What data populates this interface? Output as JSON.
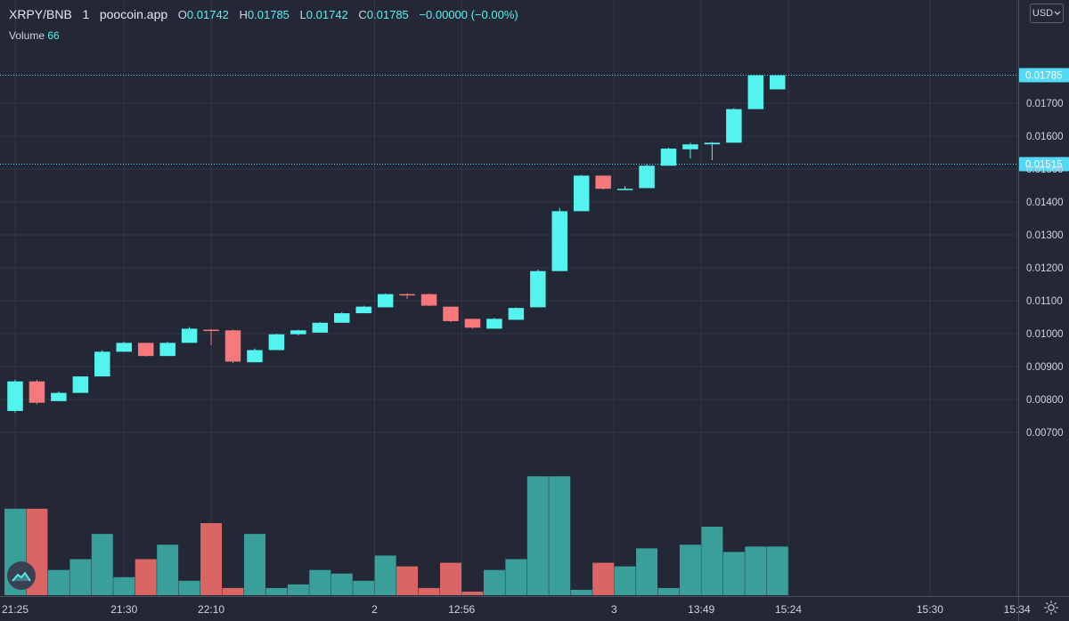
{
  "legend": {
    "symbol": "XRPY/BNB",
    "interval": "1",
    "source": "poocoin.app",
    "open_label": "O",
    "open": "0.01742",
    "high_label": "H",
    "high": "0.01785",
    "low_label": "L",
    "low": "0.01742",
    "close_label": "C",
    "close": "0.01785",
    "change": "−0.00000 (−0.00%)",
    "volume_label": "Volume",
    "volume_value": "66"
  },
  "currency": {
    "label": "USD",
    "icon": "chevron-down-icon"
  },
  "icons": {
    "logo": "poocoin-logo-icon",
    "settings": "gear-icon"
  },
  "colors": {
    "up": "#53f3ef",
    "down": "#f7777a",
    "vol_up": "#3a9e9a",
    "vol_down": "#d96565",
    "price_line": "#53d9f3"
  },
  "chart_data": {
    "type": "candlestick",
    "title": "XRPY/BNB · 1 · poocoin.app",
    "y_ticks": [
      "0.00700",
      "0.00800",
      "0.00900",
      "0.01000",
      "0.01100",
      "0.01200",
      "0.01300",
      "0.01400",
      "0.01500",
      "0.01600",
      "0.01700"
    ],
    "ylim": [
      0.0068,
      0.01805
    ],
    "x_ticks": [
      {
        "label": "21:25",
        "index": 0
      },
      {
        "label": "21:30",
        "index": 5
      },
      {
        "label": "22:10",
        "index": 9
      },
      {
        "label": "2",
        "index": 16.5
      },
      {
        "label": "12:56",
        "index": 20.5
      },
      {
        "label": "3",
        "index": 27.5
      },
      {
        "label": "13:49",
        "index": 31.5
      },
      {
        "label": "15:24",
        "index": 35.5
      },
      {
        "label": "15:30",
        "index": 42
      },
      {
        "label": "15:34",
        "index": 46
      }
    ],
    "price_lines": [
      {
        "label": "0.01785",
        "value": 0.01785
      },
      {
        "label": "0.01515",
        "value": 0.01515
      }
    ],
    "candles": [
      {
        "o": 0.00765,
        "h": 0.0086,
        "l": 0.0076,
        "c": 0.00855
      },
      {
        "o": 0.00855,
        "h": 0.0086,
        "l": 0.00785,
        "c": 0.0079
      },
      {
        "o": 0.00795,
        "h": 0.00825,
        "l": 0.00795,
        "c": 0.0082
      },
      {
        "o": 0.0082,
        "h": 0.0087,
        "l": 0.0082,
        "c": 0.0087
      },
      {
        "o": 0.0087,
        "h": 0.0095,
        "l": 0.0087,
        "c": 0.00945
      },
      {
        "o": 0.00945,
        "h": 0.00975,
        "l": 0.00945,
        "c": 0.00972
      },
      {
        "o": 0.00972,
        "h": 0.00972,
        "l": 0.0093,
        "c": 0.00932
      },
      {
        "o": 0.00932,
        "h": 0.00975,
        "l": 0.00932,
        "c": 0.00972
      },
      {
        "o": 0.00972,
        "h": 0.0102,
        "l": 0.00972,
        "c": 0.01015
      },
      {
        "o": 0.01012,
        "h": 0.01015,
        "l": 0.00965,
        "c": 0.0101
      },
      {
        "o": 0.0101,
        "h": 0.01012,
        "l": 0.0091,
        "c": 0.00915
      },
      {
        "o": 0.00913,
        "h": 0.00955,
        "l": 0.00913,
        "c": 0.0095
      },
      {
        "o": 0.0095,
        "h": 0.01,
        "l": 0.0095,
        "c": 0.00998
      },
      {
        "o": 0.00998,
        "h": 0.01012,
        "l": 0.00995,
        "c": 0.0101
      },
      {
        "o": 0.01003,
        "h": 0.01035,
        "l": 0.01003,
        "c": 0.01033
      },
      {
        "o": 0.01033,
        "h": 0.01065,
        "l": 0.01033,
        "c": 0.01062
      },
      {
        "o": 0.01062,
        "h": 0.01085,
        "l": 0.01062,
        "c": 0.01082
      },
      {
        "o": 0.0108,
        "h": 0.01122,
        "l": 0.0108,
        "c": 0.0112
      },
      {
        "o": 0.0112,
        "h": 0.01122,
        "l": 0.01105,
        "c": 0.01118
      },
      {
        "o": 0.0112,
        "h": 0.01122,
        "l": 0.01083,
        "c": 0.01085
      },
      {
        "o": 0.01082,
        "h": 0.01082,
        "l": 0.01035,
        "c": 0.01038
      },
      {
        "o": 0.01045,
        "h": 0.01045,
        "l": 0.01015,
        "c": 0.01018
      },
      {
        "o": 0.01015,
        "h": 0.01048,
        "l": 0.01015,
        "c": 0.01045
      },
      {
        "o": 0.01042,
        "h": 0.0108,
        "l": 0.01042,
        "c": 0.01078
      },
      {
        "o": 0.0108,
        "h": 0.01195,
        "l": 0.0108,
        "c": 0.0119
      },
      {
        "o": 0.0119,
        "h": 0.01382,
        "l": 0.0119,
        "c": 0.01372
      },
      {
        "o": 0.01372,
        "h": 0.01482,
        "l": 0.01372,
        "c": 0.0148
      },
      {
        "o": 0.0148,
        "h": 0.0148,
        "l": 0.01438,
        "c": 0.0144
      },
      {
        "o": 0.01437,
        "h": 0.01448,
        "l": 0.01437,
        "c": 0.0144
      },
      {
        "o": 0.01442,
        "h": 0.01515,
        "l": 0.01442,
        "c": 0.0151
      },
      {
        "o": 0.0151,
        "h": 0.01565,
        "l": 0.0151,
        "c": 0.01562
      },
      {
        "o": 0.0156,
        "h": 0.0158,
        "l": 0.01532,
        "c": 0.01575
      },
      {
        "o": 0.01575,
        "h": 0.01582,
        "l": 0.01527,
        "c": 0.0158
      },
      {
        "o": 0.0158,
        "h": 0.01685,
        "l": 0.0158,
        "c": 0.01682
      },
      {
        "o": 0.01682,
        "h": 0.01785,
        "l": 0.01682,
        "c": 0.01785
      },
      {
        "o": 0.01742,
        "h": 0.01785,
        "l": 0.01742,
        "c": 0.01785
      }
    ],
    "volume": [
      {
        "v": 24,
        "dir": "up"
      },
      {
        "v": 24,
        "dir": "down"
      },
      {
        "v": 7,
        "dir": "up"
      },
      {
        "v": 10,
        "dir": "up"
      },
      {
        "v": 17,
        "dir": "up"
      },
      {
        "v": 5,
        "dir": "up"
      },
      {
        "v": 10,
        "dir": "down"
      },
      {
        "v": 14,
        "dir": "up"
      },
      {
        "v": 4,
        "dir": "up"
      },
      {
        "v": 20,
        "dir": "down"
      },
      {
        "v": 2,
        "dir": "down"
      },
      {
        "v": 17,
        "dir": "up"
      },
      {
        "v": 2,
        "dir": "up"
      },
      {
        "v": 3,
        "dir": "up"
      },
      {
        "v": 7,
        "dir": "up"
      },
      {
        "v": 6,
        "dir": "up"
      },
      {
        "v": 4,
        "dir": "up"
      },
      {
        "v": 11,
        "dir": "up"
      },
      {
        "v": 8,
        "dir": "down"
      },
      {
        "v": 2,
        "dir": "down"
      },
      {
        "v": 9,
        "dir": "down"
      },
      {
        "v": 1,
        "dir": "down"
      },
      {
        "v": 7,
        "dir": "up"
      },
      {
        "v": 10,
        "dir": "up"
      },
      {
        "v": 33,
        "dir": "up"
      },
      {
        "v": 33,
        "dir": "up"
      },
      {
        "v": 1.5,
        "dir": "up"
      },
      {
        "v": 9,
        "dir": "down"
      },
      {
        "v": 8,
        "dir": "up"
      },
      {
        "v": 13,
        "dir": "up"
      },
      {
        "v": 2,
        "dir": "up"
      },
      {
        "v": 14,
        "dir": "up"
      },
      {
        "v": 19,
        "dir": "up"
      },
      {
        "v": 12,
        "dir": "up"
      },
      {
        "v": 13.5,
        "dir": "up"
      },
      {
        "v": 13.5,
        "dir": "up"
      }
    ]
  }
}
